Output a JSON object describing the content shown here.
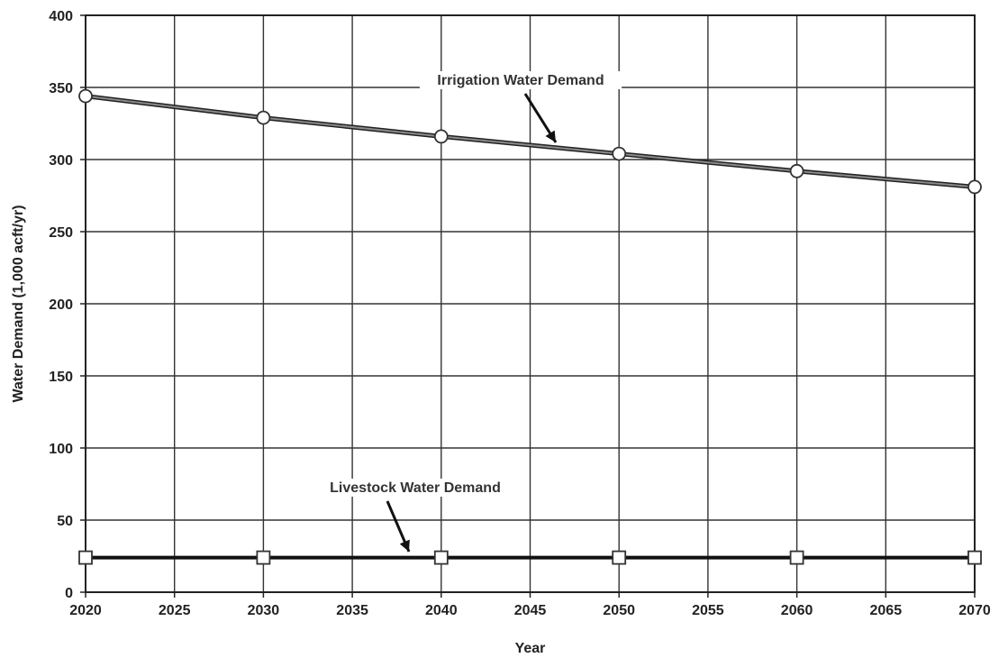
{
  "chart_data": {
    "type": "line",
    "title": "",
    "xlabel": "Year",
    "ylabel": "Water Demand (1,000 acft/yr)",
    "xlim": [
      2020,
      2070
    ],
    "ylim": [
      0,
      400
    ],
    "x_ticks": [
      "2020",
      "2025",
      "2030",
      "2035",
      "2040",
      "2045",
      "2050",
      "2055",
      "2060",
      "2065",
      "2070"
    ],
    "y_ticks": [
      "0",
      "50",
      "100",
      "150",
      "200",
      "250",
      "300",
      "350",
      "400"
    ],
    "grid": true,
    "x": [
      2020,
      2030,
      2040,
      2050,
      2060,
      2070
    ],
    "series": [
      {
        "name": "Irrigation Water Demand",
        "marker": "circle",
        "color": "#555555",
        "values": [
          344,
          329,
          316,
          304,
          292,
          281
        ]
      },
      {
        "name": "Livestock Water Demand",
        "marker": "square",
        "color": "#111111",
        "values": [
          24,
          24,
          24,
          24,
          24,
          24
        ]
      }
    ],
    "annotations": [
      {
        "text": "Irrigation Water Demand",
        "series": 0
      },
      {
        "text": "Livestock Water Demand",
        "series": 1
      }
    ]
  }
}
